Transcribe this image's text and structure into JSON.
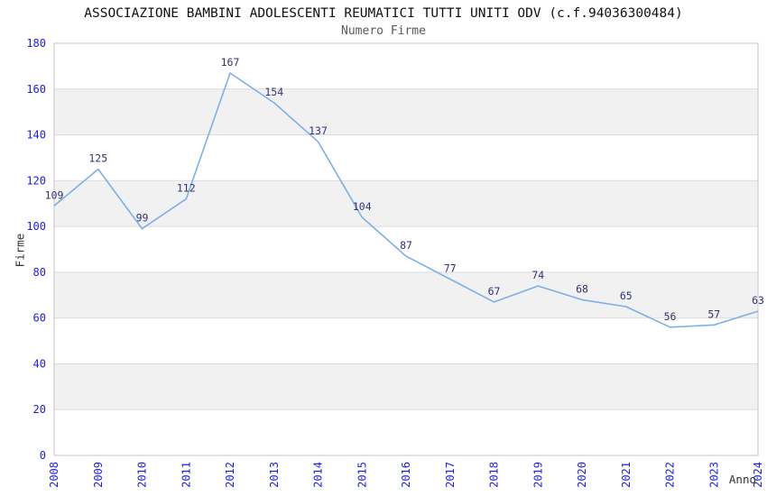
{
  "page": {
    "title": "ASSOCIAZIONE BAMBINI ADOLESCENTI REUMATICI TUTTI UNITI ODV (c.f.94036300484)",
    "subtitle": "Numero Firme"
  },
  "chart_data": {
    "type": "line",
    "title": "ASSOCIAZIONE BAMBINI ADOLESCENTI REUMATICI TUTTI UNITI ODV (c.f.94036300484)",
    "subtitle": "Numero Firme",
    "xlabel": "Anno",
    "ylabel": "Firme",
    "categories": [
      "2008",
      "2009",
      "2010",
      "2011",
      "2012",
      "2013",
      "2014",
      "2015",
      "2016",
      "2017",
      "2018",
      "2019",
      "2020",
      "2021",
      "2022",
      "2023",
      "2024"
    ],
    "series": [
      {
        "name": "Numero Firme",
        "values": [
          109,
          125,
          99,
          112,
          167,
          154,
          137,
          104,
          87,
          77,
          67,
          74,
          68,
          65,
          56,
          57,
          63
        ]
      }
    ],
    "ylim": [
      0,
      180
    ],
    "ytick_step": 20,
    "yticks": [
      0,
      20,
      40,
      60,
      80,
      100,
      120,
      140,
      160,
      180
    ],
    "grid": "horizontal-lines-with-alternating-bands",
    "legend": "none",
    "data_labels": true,
    "colors": {
      "line": "#7cb0e8",
      "tick_label": "#1c1cf0",
      "value_label": "#333377",
      "band": "#f1f1f1",
      "gridline": "#dcdcdc",
      "plot_border": "#c6c6c6",
      "title": "#111111",
      "subtitle": "#5a5a5a",
      "axis_label": "#333333",
      "background": "#ffffff"
    }
  }
}
